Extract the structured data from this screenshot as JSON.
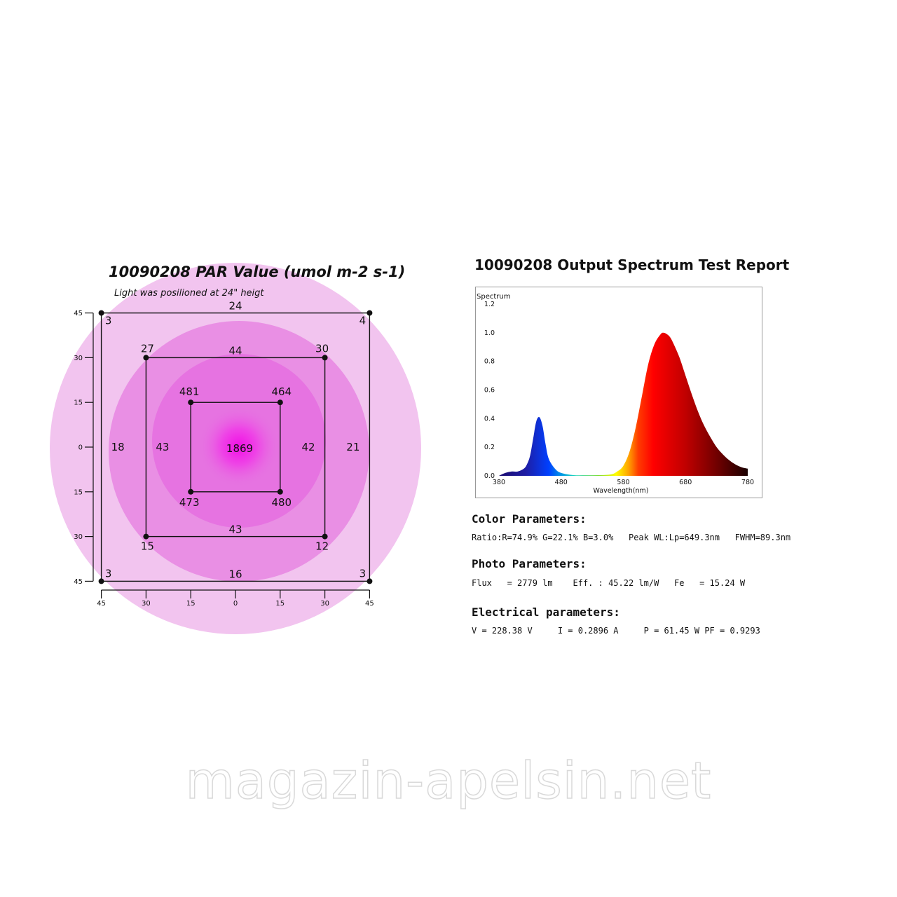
{
  "chart_data": [
    {
      "type": "heatmap",
      "title": "10090208 PAR Value (umol m-2 s-1)",
      "subtitle": "Light was posilioned at 24\" heigt",
      "y_ticks": [
        "45",
        "30",
        "15",
        "0",
        "15",
        "30",
        "45"
      ],
      "x_ticks": [
        "45",
        "30",
        "15",
        "0",
        "15",
        "30",
        "45"
      ],
      "center_value": "1869",
      "points": [
        {
          "x": -45,
          "y": 45,
          "value": "3"
        },
        {
          "x": 0,
          "y": 45,
          "value": "24"
        },
        {
          "x": 45,
          "y": 45,
          "value": "4"
        },
        {
          "x": -45,
          "y": 0,
          "value": "18"
        },
        {
          "x": 45,
          "y": 0,
          "value": "21"
        },
        {
          "x": -45,
          "y": -45,
          "value": "3"
        },
        {
          "x": 0,
          "y": -45,
          "value": "16"
        },
        {
          "x": 45,
          "y": -45,
          "value": "3"
        },
        {
          "x": -30,
          "y": 30,
          "value": "27"
        },
        {
          "x": 0,
          "y": 30,
          "value": "44"
        },
        {
          "x": 30,
          "y": 30,
          "value": "30"
        },
        {
          "x": -30,
          "y": 0,
          "value": "43"
        },
        {
          "x": 30,
          "y": 0,
          "value": "42"
        },
        {
          "x": -30,
          "y": -30,
          "value": "15"
        },
        {
          "x": 0,
          "y": -30,
          "value": "43"
        },
        {
          "x": 30,
          "y": -30,
          "value": "12"
        },
        {
          "x": -15,
          "y": 15,
          "value": "481"
        },
        {
          "x": 15,
          "y": 15,
          "value": "464"
        },
        {
          "x": -15,
          "y": -15,
          "value": "473"
        },
        {
          "x": 15,
          "y": -15,
          "value": "480"
        }
      ]
    },
    {
      "type": "area",
      "title": "10090208 Output Spectrum Test Report",
      "ylabel": "Spectrum",
      "xlabel": "Wavelength(nm)",
      "xlim": [
        380,
        780
      ],
      "ylim": [
        0.0,
        1.2
      ],
      "x_ticks": [
        380,
        480,
        580,
        680,
        780
      ],
      "y_ticks": [
        "0.0",
        "0.2",
        "0.4",
        "0.6",
        "0.8",
        "1.0",
        "1.2"
      ],
      "series": [
        {
          "x": [
            380,
            390,
            400,
            410,
            420,
            425,
            430,
            435,
            440,
            445,
            450,
            455,
            460,
            470,
            480,
            500,
            520,
            540,
            560,
            570,
            580,
            590,
            600,
            610,
            620,
            630,
            640,
            645,
            650,
            655,
            660,
            670,
            680,
            690,
            700,
            710,
            720,
            730,
            740,
            750,
            760,
            770,
            780
          ],
          "y": [
            0.0,
            0.02,
            0.03,
            0.03,
            0.05,
            0.08,
            0.14,
            0.26,
            0.38,
            0.41,
            0.35,
            0.22,
            0.12,
            0.05,
            0.02,
            0.005,
            0.004,
            0.005,
            0.01,
            0.03,
            0.07,
            0.17,
            0.34,
            0.56,
            0.78,
            0.92,
            0.99,
            1.0,
            0.99,
            0.97,
            0.93,
            0.83,
            0.7,
            0.57,
            0.45,
            0.35,
            0.27,
            0.2,
            0.15,
            0.11,
            0.08,
            0.06,
            0.05
          ]
        }
      ]
    }
  ],
  "color_parameters": {
    "heading": "Color Parameters:",
    "line": "Ratio:R=74.9% G=22.1% B=3.0%   Peak WL:Lp=649.3nm   FWHM=89.3nm"
  },
  "photo_parameters": {
    "heading": "Photo Parameters:",
    "line": "Flux   = 2779 lm    Eff. : 45.22 lm/W   Fe   = 15.24 W"
  },
  "electrical_parameters": {
    "heading": "Electrical parameters:",
    "line": "V = 228.38 V     I = 0.2896 A     P = 61.45 W PF = 0.9293"
  },
  "watermark": "magazin-apelsin.net",
  "colors": {
    "outer_circle": "#f2c4ef",
    "middle_circle": "#e98fe4",
    "inner_circle": "#e673e1",
    "center_hot": "#f20fe6",
    "text": "#111111"
  }
}
